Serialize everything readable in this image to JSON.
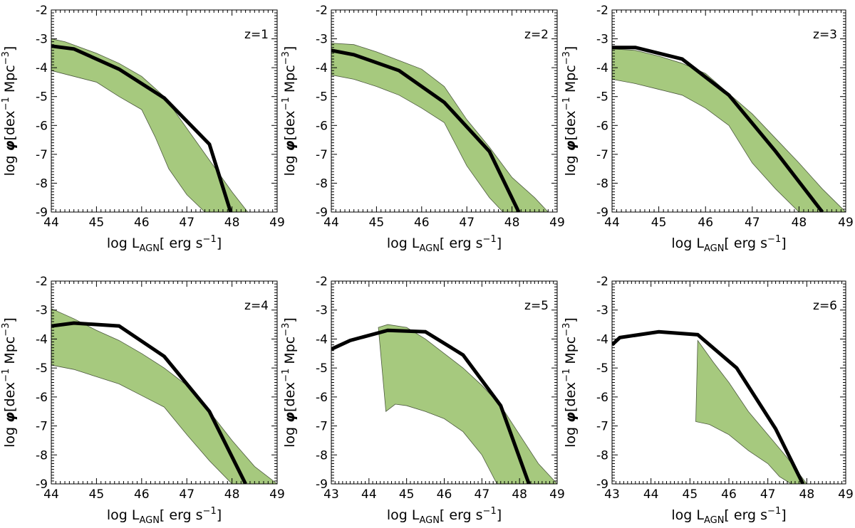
{
  "figure": {
    "colors": {
      "band_fill": "#a6c97e",
      "band_edge": "#4d5a40",
      "line": "#000000"
    }
  },
  "chart_data": [
    {
      "type": "area",
      "annotation": "z=1",
      "xlabel": "log L_AGN[ erg s^-1]",
      "ylabel": "log φ[dex^-1 Mpc^-3]",
      "xlim": [
        44,
        49
      ],
      "ylim": [
        -9,
        -2
      ],
      "xticks": [
        44,
        45,
        46,
        47,
        48,
        49
      ],
      "yticks": [
        -2,
        -3,
        -4,
        -5,
        -6,
        -7,
        -8,
        -9
      ],
      "grid": false,
      "band": {
        "upper": [
          [
            44.0,
            -3.0
          ],
          [
            44.3,
            -3.1
          ],
          [
            45.0,
            -3.5
          ],
          [
            45.5,
            -3.85
          ],
          [
            46.0,
            -4.3
          ],
          [
            46.5,
            -5.0
          ],
          [
            47.0,
            -6.1
          ],
          [
            47.5,
            -7.2
          ],
          [
            48.0,
            -8.3
          ],
          [
            48.3,
            -8.9
          ],
          [
            48.35,
            -9.0
          ]
        ],
        "lower": [
          [
            44.0,
            -4.1
          ],
          [
            44.5,
            -4.3
          ],
          [
            45.0,
            -4.5
          ],
          [
            45.5,
            -5.0
          ],
          [
            46.0,
            -5.45
          ],
          [
            46.3,
            -6.4
          ],
          [
            46.6,
            -7.5
          ],
          [
            47.0,
            -8.4
          ],
          [
            47.4,
            -9.0
          ]
        ]
      },
      "series": [
        {
          "x": [
            44.0,
            44.5,
            45.5,
            46.5,
            47.5,
            47.97
          ],
          "y": [
            -3.25,
            -3.35,
            -4.05,
            -5.05,
            -6.65,
            -9.0
          ]
        }
      ]
    },
    {
      "type": "area",
      "annotation": "z=2",
      "xlabel": "log L_AGN[ erg s^-1]",
      "ylabel": "log φ[dex^-1 Mpc^-3]",
      "xlim": [
        44,
        49
      ],
      "ylim": [
        -9,
        -2
      ],
      "xticks": [
        44,
        45,
        46,
        47,
        48,
        49
      ],
      "yticks": [
        -2,
        -3,
        -4,
        -5,
        -6,
        -7,
        -8,
        -9
      ],
      "grid": false,
      "band": {
        "upper": [
          [
            44.0,
            -3.15
          ],
          [
            44.5,
            -3.2
          ],
          [
            45.0,
            -3.45
          ],
          [
            45.5,
            -3.75
          ],
          [
            46.0,
            -4.05
          ],
          [
            46.5,
            -4.65
          ],
          [
            47.0,
            -5.8
          ],
          [
            47.5,
            -6.75
          ],
          [
            48.0,
            -7.8
          ],
          [
            48.5,
            -8.5
          ],
          [
            48.8,
            -9.0
          ]
        ],
        "lower": [
          [
            44.0,
            -4.25
          ],
          [
            44.5,
            -4.4
          ],
          [
            45.0,
            -4.65
          ],
          [
            45.5,
            -4.95
          ],
          [
            46.0,
            -5.4
          ],
          [
            46.5,
            -5.9
          ],
          [
            47.0,
            -7.4
          ],
          [
            47.5,
            -8.5
          ],
          [
            47.8,
            -9.0
          ]
        ]
      },
      "series": [
        {
          "x": [
            44.0,
            44.5,
            45.5,
            46.5,
            47.5,
            48.15
          ],
          "y": [
            -3.4,
            -3.55,
            -4.1,
            -5.2,
            -6.9,
            -9.0
          ]
        }
      ]
    },
    {
      "type": "area",
      "annotation": "z=3",
      "xlabel": "log L_AGN[ erg s^-1]",
      "ylabel": "log φ[dex^-1 Mpc^-3]",
      "xlim": [
        44,
        49
      ],
      "ylim": [
        -9,
        -2
      ],
      "xticks": [
        44,
        45,
        46,
        47,
        48,
        49
      ],
      "yticks": [
        -2,
        -3,
        -4,
        -5,
        -6,
        -7,
        -8,
        -9
      ],
      "grid": false,
      "band": {
        "upper": [
          [
            44.0,
            -3.35
          ],
          [
            44.5,
            -3.4
          ],
          [
            45.0,
            -3.6
          ],
          [
            45.5,
            -3.85
          ],
          [
            46.0,
            -4.2
          ],
          [
            46.5,
            -4.9
          ],
          [
            47.0,
            -5.6
          ],
          [
            47.5,
            -6.45
          ],
          [
            48.0,
            -7.3
          ],
          [
            48.5,
            -8.2
          ],
          [
            49.0,
            -9.0
          ]
        ],
        "lower": [
          [
            44.0,
            -4.4
          ],
          [
            44.5,
            -4.55
          ],
          [
            45.0,
            -4.75
          ],
          [
            45.5,
            -4.95
          ],
          [
            46.0,
            -5.4
          ],
          [
            46.5,
            -6.0
          ],
          [
            47.0,
            -7.3
          ],
          [
            47.5,
            -8.2
          ],
          [
            48.0,
            -9.0
          ]
        ]
      },
      "series": [
        {
          "x": [
            44.0,
            44.5,
            45.5,
            46.5,
            47.5,
            48.5
          ],
          "y": [
            -3.3,
            -3.3,
            -3.7,
            -4.95,
            -6.9,
            -9.0
          ]
        }
      ]
    },
    {
      "type": "area",
      "annotation": "z=4",
      "xlabel": "log L_AGN[ erg s^-1]",
      "ylabel": "log φ[dex^-1 Mpc^-3]",
      "xlim": [
        44,
        49
      ],
      "ylim": [
        -9,
        -2
      ],
      "xticks": [
        44,
        45,
        46,
        47,
        48,
        49
      ],
      "yticks": [
        -2,
        -3,
        -4,
        -5,
        -6,
        -7,
        -8,
        -9
      ],
      "grid": false,
      "band": {
        "upper": [
          [
            44.0,
            -2.95
          ],
          [
            44.5,
            -3.3
          ],
          [
            45.0,
            -3.7
          ],
          [
            45.5,
            -4.05
          ],
          [
            46.0,
            -4.5
          ],
          [
            46.5,
            -5.0
          ],
          [
            47.0,
            -5.6
          ],
          [
            47.5,
            -6.5
          ],
          [
            48.0,
            -7.5
          ],
          [
            48.5,
            -8.4
          ],
          [
            49.0,
            -9.0
          ]
        ],
        "lower": [
          [
            44.0,
            -4.9
          ],
          [
            44.5,
            -5.05
          ],
          [
            45.0,
            -5.3
          ],
          [
            45.5,
            -5.55
          ],
          [
            46.0,
            -5.95
          ],
          [
            46.5,
            -6.35
          ],
          [
            47.0,
            -7.3
          ],
          [
            47.5,
            -8.2
          ],
          [
            48.0,
            -9.0
          ]
        ]
      },
      "series": [
        {
          "x": [
            44.0,
            44.5,
            45.5,
            46.5,
            47.5,
            48.3
          ],
          "y": [
            -3.55,
            -3.45,
            -3.55,
            -4.6,
            -6.5,
            -9.0
          ]
        }
      ]
    },
    {
      "type": "area",
      "annotation": "z=5",
      "xlabel": "log L_AGN[ erg s^-1]",
      "ylabel": "log φ[dex^-1 Mpc^-3]",
      "xlim": [
        43,
        49
      ],
      "ylim": [
        -9,
        -2
      ],
      "xticks": [
        43,
        44,
        45,
        46,
        47,
        48,
        49
      ],
      "yticks": [
        -2,
        -3,
        -4,
        -5,
        -6,
        -7,
        -8,
        -9
      ],
      "grid": false,
      "band": {
        "upper": [
          [
            44.25,
            -3.6
          ],
          [
            44.5,
            -3.5
          ],
          [
            45.0,
            -3.6
          ],
          [
            45.5,
            -4.0
          ],
          [
            46.0,
            -4.5
          ],
          [
            46.5,
            -5.0
          ],
          [
            47.0,
            -5.6
          ],
          [
            47.5,
            -6.3
          ],
          [
            48.0,
            -7.3
          ],
          [
            48.5,
            -8.3
          ],
          [
            49.0,
            -9.0
          ]
        ],
        "lower": [
          [
            44.45,
            -6.5
          ],
          [
            44.7,
            -6.25
          ],
          [
            45.0,
            -6.3
          ],
          [
            45.5,
            -6.5
          ],
          [
            46.0,
            -6.75
          ],
          [
            46.5,
            -7.2
          ],
          [
            47.0,
            -8.0
          ],
          [
            47.4,
            -9.0
          ]
        ]
      },
      "series": [
        {
          "x": [
            43.0,
            43.5,
            44.5,
            45.5,
            46.5,
            47.5,
            48.25
          ],
          "y": [
            -4.35,
            -4.05,
            -3.7,
            -3.75,
            -4.55,
            -6.3,
            -9.0
          ]
        }
      ]
    },
    {
      "type": "area",
      "annotation": "z=6",
      "xlabel": "log L_AGN[ erg s^-1]",
      "ylabel": "log φ[dex^-1 Mpc^-3]",
      "xlim": [
        43,
        49
      ],
      "ylim": [
        -9,
        -2
      ],
      "xticks": [
        43,
        44,
        45,
        46,
        47,
        48,
        49
      ],
      "yticks": [
        -2,
        -3,
        -4,
        -5,
        -6,
        -7,
        -8,
        -9
      ],
      "grid": false,
      "band": {
        "upper": [
          [
            45.2,
            -4.05
          ],
          [
            45.6,
            -4.8
          ],
          [
            46.0,
            -5.5
          ],
          [
            46.5,
            -6.5
          ],
          [
            47.0,
            -7.3
          ],
          [
            47.5,
            -8.1
          ],
          [
            48.0,
            -9.0
          ]
        ],
        "lower": [
          [
            45.15,
            -6.85
          ],
          [
            45.5,
            -6.95
          ],
          [
            46.0,
            -7.3
          ],
          [
            46.5,
            -7.85
          ],
          [
            47.0,
            -8.3
          ],
          [
            47.3,
            -8.75
          ],
          [
            47.6,
            -9.0
          ]
        ]
      },
      "series": [
        {
          "x": [
            43.0,
            43.2,
            44.2,
            45.2,
            46.2,
            47.2,
            47.9
          ],
          "y": [
            -4.2,
            -3.95,
            -3.75,
            -3.85,
            -5.0,
            -7.1,
            -9.0
          ]
        }
      ]
    }
  ]
}
